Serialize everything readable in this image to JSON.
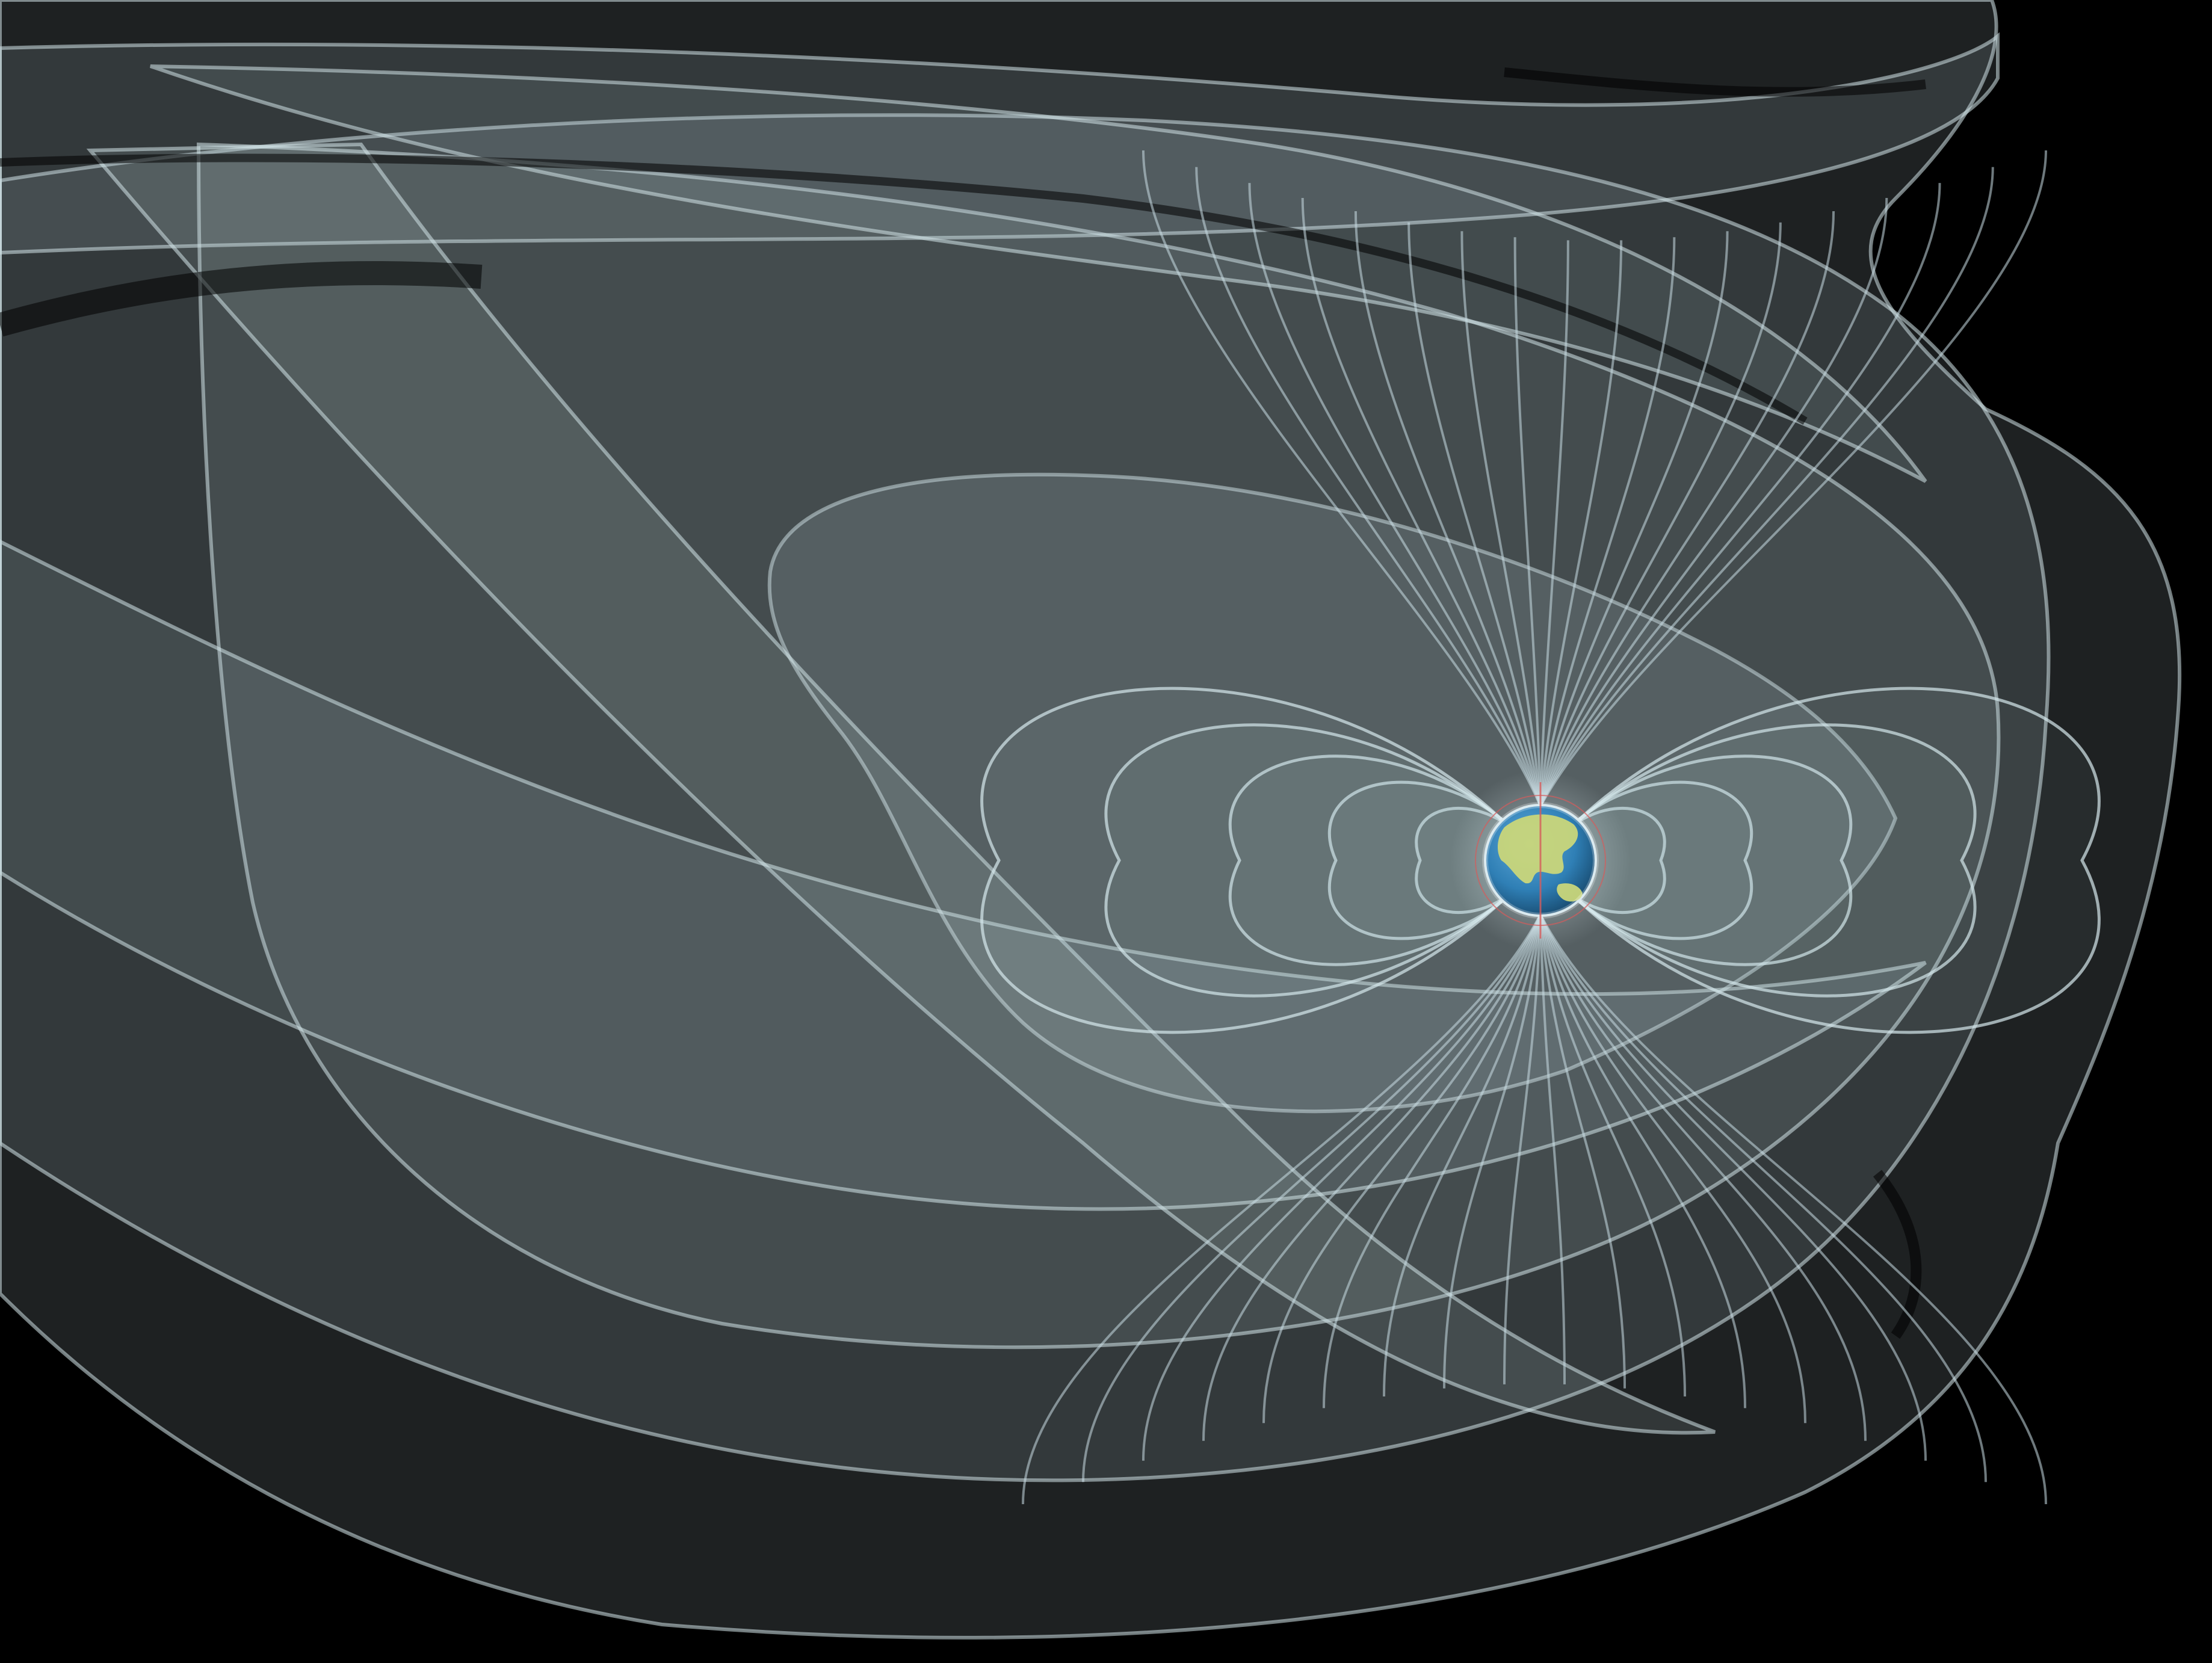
{
  "scene": {
    "subject": "earth-magnetosphere-visualization",
    "colors": {
      "background": "#000000",
      "field_surface": "#b9cdd4",
      "field_line": "#c8dde3",
      "earth_ocean": "#2f7fb5",
      "earth_land": "#c9d67a",
      "axis_marker": "#d65b5b"
    },
    "outer_layers": 7,
    "inner_loops": 5
  }
}
